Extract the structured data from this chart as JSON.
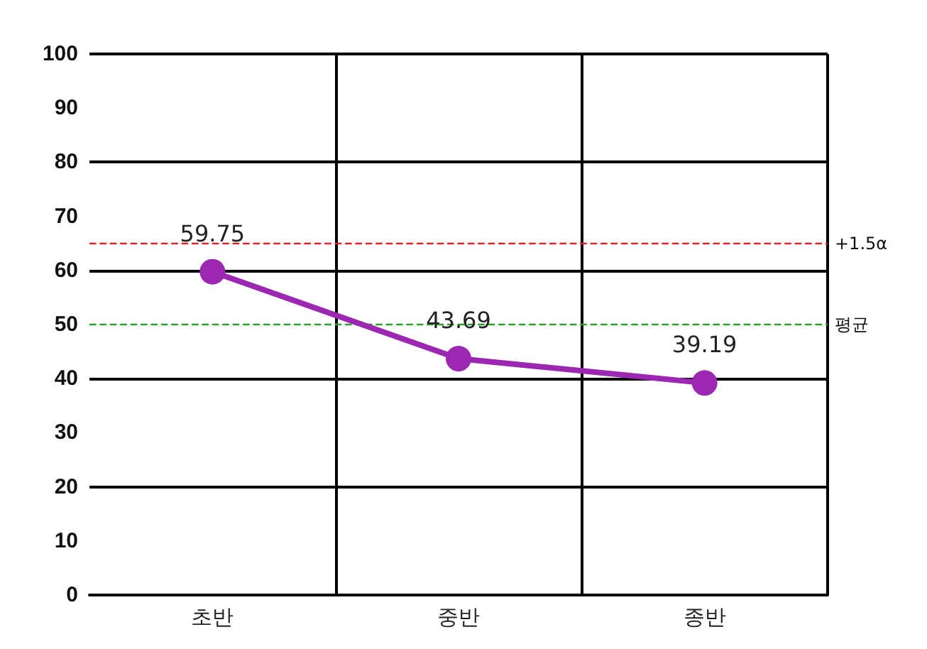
{
  "chart_data": {
    "type": "line",
    "categories": [
      "초반",
      "중반",
      "종반"
    ],
    "series": [
      {
        "color": "#9c27b0",
        "values": [
          59.75,
          43.69,
          39.19
        ]
      }
    ],
    "data_labels": true,
    "marker": "circle",
    "line_style": "solid",
    "grid": true,
    "ylim": [
      0,
      100
    ],
    "yticks": [
      0,
      10,
      20,
      30,
      40,
      50,
      60,
      70,
      80,
      90,
      100
    ],
    "ref_lines": [
      {
        "axis": "y",
        "value": 65,
        "label": "+1.5α",
        "color": "#d62728",
        "line_style": "dashed"
      },
      {
        "axis": "y",
        "value": 50,
        "label": "평균",
        "color": "#2ca02c",
        "line_style": "dashed"
      }
    ]
  }
}
